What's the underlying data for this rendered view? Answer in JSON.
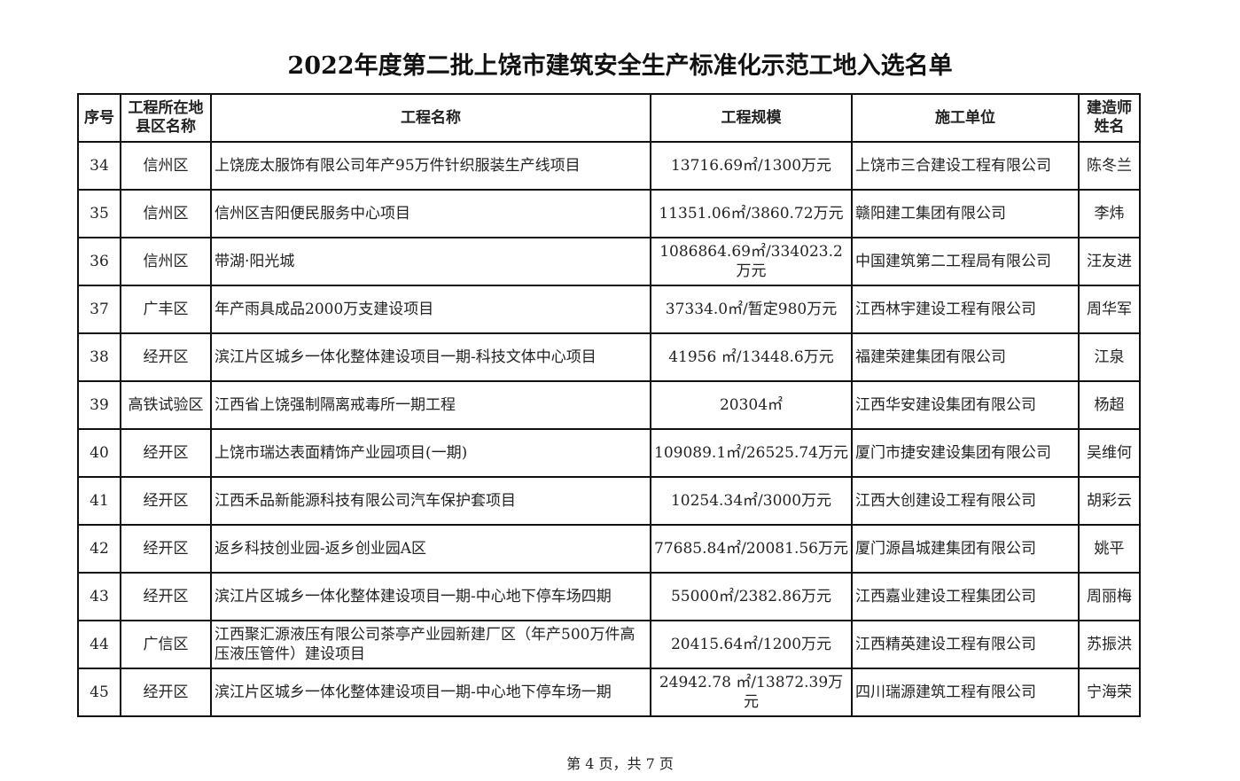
{
  "title": "2022年度第二批上饶市建筑安全生产标准化示范工地入选名单",
  "headers": [
    "序号",
    "工程所在地县区名称",
    "工程名称",
    "工程规模",
    "施工单位",
    "建造师姓名"
  ],
  "rows": [
    {
      "no": "34",
      "district": "信州区",
      "project": "上饶庞太服饰有限公司年产95万件针织服装生产线项目",
      "scale": "13716.69㎡/1300万元",
      "contractor": "上饶市三合建设工程有限公司",
      "builder": "陈冬兰"
    },
    {
      "no": "35",
      "district": "信州区",
      "project": "信州区吉阳便民服务中心项目",
      "scale": "11351.06㎡/3860.72万元",
      "contractor": "赣阳建工集团有限公司",
      "builder": "李炜"
    },
    {
      "no": "36",
      "district": "信州区",
      "project": "带湖·阳光城",
      "scale": "1086864.69㎡/334023.2万元",
      "contractor": "中国建筑第二工程局有限公司",
      "builder": "汪友进"
    },
    {
      "no": "37",
      "district": "广丰区",
      "project": "年产雨具成品2000万支建设项目",
      "scale": "37334.0㎡/暂定980万元",
      "contractor": "江西林宇建设工程有限公司",
      "builder": "周华军"
    },
    {
      "no": "38",
      "district": "经开区",
      "project": "滨江片区城乡一体化整体建设项目一期-科技文体中心项目",
      "scale": "41956 ㎡/13448.6万元",
      "contractor": "福建荣建集团有限公司",
      "builder": "江泉"
    },
    {
      "no": "39",
      "district": "高铁试验区",
      "project": "江西省上饶强制隔离戒毒所一期工程",
      "scale": "20304㎡",
      "contractor": "江西华安建设集团有限公司",
      "builder": "杨超"
    },
    {
      "no": "40",
      "district": "经开区",
      "project": "上饶市瑞达表面精饰产业园项目(一期)",
      "scale": "109089.1㎡/26525.74万元",
      "contractor": "厦门市捷安建设集团有限公司",
      "builder": "吴维何"
    },
    {
      "no": "41",
      "district": "经开区",
      "project": "江西禾品新能源科技有限公司汽车保护套项目",
      "scale": "10254.34㎡/3000万元",
      "contractor": "江西大创建设工程有限公司",
      "builder": "胡彩云"
    },
    {
      "no": "42",
      "district": "经开区",
      "project": "返乡科技创业园-返乡创业园A区",
      "scale": "77685.84㎡/20081.56万元",
      "contractor": "厦门源昌城建集团有限公司",
      "builder": "姚平"
    },
    {
      "no": "43",
      "district": "经开区",
      "project": "滨江片区城乡一体化整体建设项目一期-中心地下停车场四期",
      "scale": "55000㎡/2382.86万元",
      "contractor": "江西嘉业建设工程集团公司",
      "builder": "周丽梅"
    },
    {
      "no": "44",
      "district": "广信区",
      "project": "江西聚汇源液压有限公司茶亭产业园新建厂区（年产500万件高压液压管件）建设项目",
      "scale": "20415.64㎡/1200万元",
      "contractor": "江西精英建设工程有限公司",
      "builder": "苏振洪"
    },
    {
      "no": "45",
      "district": "经开区",
      "project": "滨江片区城乡一体化整体建设项目一期-中心地下停车场一期",
      "scale": "24942.78 ㎡/13872.39万元",
      "contractor": "四川瑞源建筑工程有限公司",
      "builder": "宁海荣"
    }
  ],
  "footer": "第 4 页，共 7 页"
}
